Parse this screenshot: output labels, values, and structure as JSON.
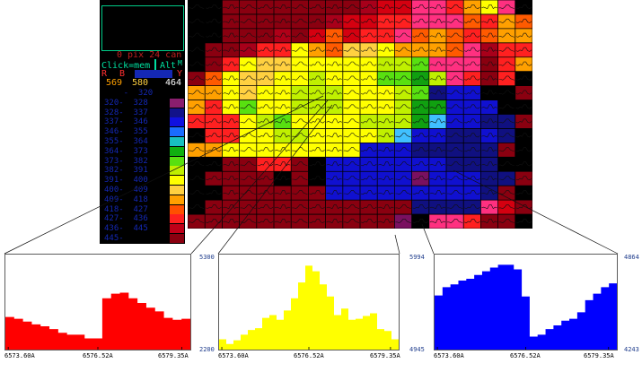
{
  "panel": {
    "status_text": "0 pix 24 can",
    "click_text": "Click=mem",
    "alt_text": "Alt",
    "m_text": "M",
    "band_labels": [
      "R",
      "B",
      "",
      "Y"
    ],
    "values": [
      "569",
      "580",
      "464"
    ],
    "scale_rows": [
      {
        "label": "    -  320",
        "color": "#000000"
      },
      {
        "label": "320-  328",
        "color": "#8a1e6e"
      },
      {
        "label": "328-  337",
        "color": "#12128a"
      },
      {
        "label": "337-  346",
        "color": "#1010e0"
      },
      {
        "label": "346-  355",
        "color": "#1a6cff"
      },
      {
        "label": "355-  364",
        "color": "#18c0c0"
      },
      {
        "label": "364-  373",
        "color": "#10b010"
      },
      {
        "label": "373-  382",
        "color": "#58e010"
      },
      {
        "label": "382-  391",
        "color": "#c0f000"
      },
      {
        "label": "391-  400",
        "color": "#ffff00"
      },
      {
        "label": "400-  409",
        "color": "#ffd040"
      },
      {
        "label": "409-  418",
        "color": "#ffa000"
      },
      {
        "label": "418-  427",
        "color": "#ff5000"
      },
      {
        "label": "427-  436",
        "color": "#ff2020"
      },
      {
        "label": "436-  445",
        "color": "#c00018"
      },
      {
        "label": "445-  ",
        "color": "#8a0010"
      }
    ]
  },
  "grid": {
    "palette": {
      "K": "#000000",
      "D": "#8a0010",
      "d": "#a8001a",
      "R": "#d40010",
      "r": "#ff2020",
      "o": "#ff5a00",
      "O": "#ffa000",
      "y": "#ffd040",
      "Y": "#ffff00",
      "L": "#c0f000",
      "G": "#58e010",
      "g": "#10a010",
      "C": "#40c0ff",
      "b": "#1a30ff",
      "B": "#1010d0",
      "N": "#101080",
      "P": "#ff3080",
      "p": "#ff60a0",
      "M": "#7a1060",
      "X": "#b00018"
    },
    "rows": [
      "KKDDDDDDDDdRRPPrOYPK",
      "KKDDDDDDdRRrrPPPorOo",
      "KKDDDXDRoRrrPoOoroOO",
      "KDDdrrYOoyyYOOOoPdrr",
      "KDrYyyYYYYYLLGPPPDrO",
      "DoYyyYYLYYYGGgLPrDrK",
      "OOYyYYLLLYYYLGNBBKKD",
      "OrYGYYLLLYYYLggBBBKK",
      "rrrYLGYYYYLLLgCBBNND",
      "KrrYYLLYYYYLCBBNNBNK",
      "OOYYYYYYYYBBBNNNNNDK",
      "KKDDrrDKBBBBBBBNNNKK",
      "KDDDDKDKBBBBBMBBBNND",
      "KKDDDDDDBBBBBBBBBNDK",
      "KDDDDDDDDDDDDNNNNPRD",
      "DDDDDDDDDDDDMKPPrDDK"
    ]
  },
  "histograms": [
    {
      "name": "red",
      "color": "#ff0000",
      "values": [
        35,
        33,
        30,
        27,
        25,
        22,
        18,
        16,
        16,
        12,
        12,
        55,
        60,
        61,
        55,
        50,
        45,
        41,
        34,
        32,
        33
      ],
      "xlabels": [
        "6573.60A",
        "6576.52A",
        "6579.35A"
      ],
      "ylabels": []
    },
    {
      "name": "yellow",
      "color": "#ffff00",
      "values": [
        11,
        6,
        10,
        16,
        21,
        23,
        34,
        37,
        32,
        42,
        55,
        72,
        90,
        84,
        70,
        57,
        37,
        44,
        32,
        33,
        36,
        39,
        22,
        20,
        11
      ],
      "xlabels": [
        "6573.60A",
        "6576.52A",
        "6579.35A"
      ],
      "ylabels": [
        "5300",
        "2200",
        "5994",
        "4945"
      ]
    },
    {
      "name": "blue",
      "color": "#0000ff",
      "values": [
        58,
        67,
        70,
        74,
        76,
        80,
        84,
        88,
        91,
        91,
        86,
        57,
        14,
        16,
        22,
        26,
        31,
        33,
        40,
        53,
        60,
        67,
        71
      ],
      "xlabels": [
        "6573.60A",
        "6576.52A",
        "6579.35A"
      ],
      "ylabels": [
        "4864",
        "4243"
      ]
    }
  ]
}
